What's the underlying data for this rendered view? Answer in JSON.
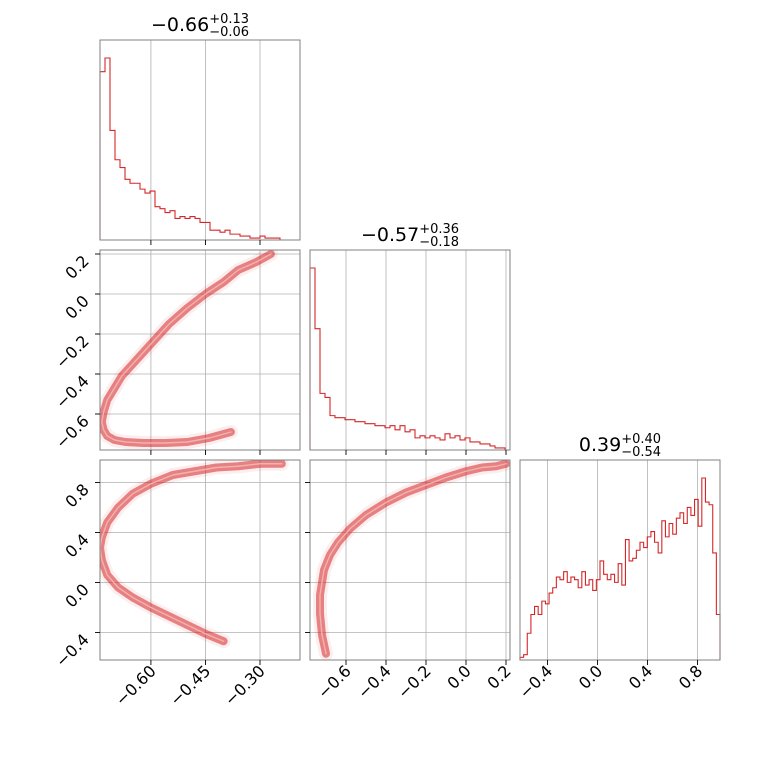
{
  "chart_data": {
    "type": "corner",
    "color": "#d62728",
    "grid": true,
    "parameters": [
      {
        "key": "p0",
        "range": [
          -0.74,
          -0.19
        ],
        "ticks": [
          -0.6,
          -0.45,
          -0.3
        ],
        "tick_labels": [
          "−0.60",
          "−0.45",
          "−0.30"
        ],
        "title": {
          "median": "−0.66",
          "plus": "+0.13",
          "minus": "−0.06"
        },
        "histogram": [
          0.86,
          0.93,
          0.56,
          0.41,
          0.37,
          0.31,
          0.29,
          0.29,
          0.26,
          0.24,
          0.25,
          0.17,
          0.16,
          0.14,
          0.15,
          0.11,
          0.12,
          0.11,
          0.12,
          0.11,
          0.09,
          0.09,
          0.05,
          0.05,
          0.04,
          0.05,
          0.03,
          0.03,
          0.02,
          0.02,
          0.01,
          0.01,
          0.02,
          0.01,
          0.01,
          0.01,
          0.0,
          0.0,
          0.0,
          0.0
        ]
      },
      {
        "key": "p1",
        "range": [
          -0.78,
          0.22
        ],
        "ticks": [
          -0.6,
          -0.4,
          -0.2,
          0.0,
          0.2
        ],
        "tick_labels": [
          "−0.6",
          "−0.4",
          "−0.2",
          "0.0",
          "0.2"
        ],
        "title": {
          "median": "−0.57",
          "plus": "+0.36",
          "minus": "−0.18"
        },
        "histogram": [
          0.9,
          0.6,
          0.28,
          0.26,
          0.17,
          0.16,
          0.16,
          0.15,
          0.15,
          0.14,
          0.14,
          0.13,
          0.13,
          0.12,
          0.12,
          0.11,
          0.12,
          0.1,
          0.12,
          0.09,
          0.1,
          0.06,
          0.07,
          0.06,
          0.07,
          0.06,
          0.05,
          0.08,
          0.06,
          0.07,
          0.05,
          0.06,
          0.04,
          0.04,
          0.03,
          0.03,
          0.02,
          0.01,
          0.01,
          0.0
        ]
      },
      {
        "key": "p2",
        "range": [
          -0.62,
          0.98
        ],
        "ticks": [
          -0.4,
          0.0,
          0.4,
          0.8
        ],
        "tick_labels": [
          "−0.4",
          "0.0",
          "0.4",
          "0.8"
        ],
        "title": {
          "median": "0.39",
          "plus": "+0.40",
          "minus": "−0.54"
        },
        "histogram": [
          0.01,
          0.02,
          0.1,
          0.17,
          0.2,
          0.17,
          0.22,
          0.21,
          0.25,
          0.27,
          0.31,
          0.3,
          0.33,
          0.29,
          0.31,
          0.3,
          0.27,
          0.33,
          0.28,
          0.3,
          0.26,
          0.3,
          0.37,
          0.32,
          0.3,
          0.32,
          0.29,
          0.36,
          0.28,
          0.45,
          0.37,
          0.38,
          0.41,
          0.44,
          0.42,
          0.46,
          0.48,
          0.44,
          0.4,
          0.52,
          0.46,
          0.51,
          0.47,
          0.53,
          0.55,
          0.51,
          0.57,
          0.54,
          0.6,
          0.5,
          0.68,
          0.59,
          0.58,
          0.4,
          0.17
        ]
      }
    ],
    "joint_curves": [
      {
        "x": "p0",
        "y": "p1",
        "x_values": [
          -0.27,
          -0.31,
          -0.36,
          -0.4,
          -0.45,
          -0.5,
          -0.55,
          -0.6,
          -0.64,
          -0.68,
          -0.7,
          -0.72,
          -0.73,
          -0.735,
          -0.73,
          -0.72,
          -0.7,
          -0.67,
          -0.62,
          -0.56,
          -0.5,
          -0.44,
          -0.38
        ],
        "y_values": [
          0.2,
          0.16,
          0.12,
          0.06,
          0.0,
          -0.07,
          -0.15,
          -0.25,
          -0.33,
          -0.41,
          -0.47,
          -0.53,
          -0.59,
          -0.64,
          -0.68,
          -0.71,
          -0.73,
          -0.74,
          -0.745,
          -0.745,
          -0.74,
          -0.72,
          -0.69
        ]
      },
      {
        "x": "p0",
        "y": "p2",
        "x_values": [
          -0.24,
          -0.3,
          -0.36,
          -0.42,
          -0.48,
          -0.54,
          -0.6,
          -0.65,
          -0.69,
          -0.72,
          -0.735,
          -0.74,
          -0.735,
          -0.72,
          -0.69,
          -0.65,
          -0.6,
          -0.55,
          -0.5,
          -0.45,
          -0.4
        ],
        "y_values": [
          0.95,
          0.95,
          0.93,
          0.92,
          0.89,
          0.86,
          0.79,
          0.71,
          0.6,
          0.48,
          0.36,
          0.28,
          0.18,
          0.06,
          -0.04,
          -0.12,
          -0.2,
          -0.27,
          -0.34,
          -0.41,
          -0.47
        ]
      },
      {
        "x": "p1",
        "y": "p2",
        "x_values": [
          0.2,
          0.15,
          0.08,
          0.0,
          -0.1,
          -0.2,
          -0.3,
          -0.4,
          -0.5,
          -0.58,
          -0.64,
          -0.68,
          -0.71,
          -0.72,
          -0.73,
          -0.73,
          -0.72,
          -0.7
        ],
        "y_values": [
          0.95,
          0.93,
          0.92,
          0.89,
          0.84,
          0.78,
          0.72,
          0.64,
          0.54,
          0.43,
          0.32,
          0.22,
          0.1,
          0.0,
          -0.1,
          -0.25,
          -0.42,
          -0.57
        ]
      }
    ]
  }
}
